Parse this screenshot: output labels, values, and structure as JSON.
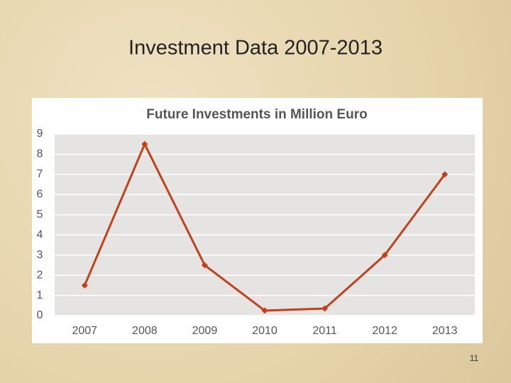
{
  "slide": {
    "title": "Investment Data 2007-2013",
    "page_number": "11"
  },
  "chart_data": {
    "type": "line",
    "title": "Future Investments in Million Euro",
    "categories": [
      "2007",
      "2008",
      "2009",
      "2010",
      "2011",
      "2012",
      "2013"
    ],
    "values": [
      1.5,
      8.5,
      2.5,
      0.25,
      0.35,
      3,
      7
    ],
    "color": "#c2411b",
    "ylim": [
      0,
      9
    ],
    "yticks": [
      0,
      1,
      2,
      3,
      4,
      5,
      6,
      7,
      8,
      9
    ],
    "grid": true
  }
}
